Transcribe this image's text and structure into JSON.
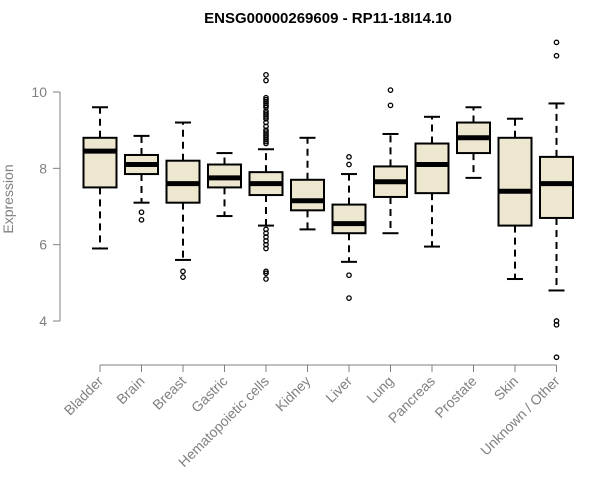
{
  "chart_data": {
    "type": "boxplot",
    "title": "ENSG00000269609 - RP11-18I14.10",
    "ylabel": "Expression",
    "ylim": [
      3.0,
      11.5
    ],
    "yticks": [
      4,
      6,
      8,
      10
    ],
    "colors": {
      "box_fill": "#ede7cf",
      "box_stroke": "#000000",
      "axis": "#808080"
    },
    "categories": [
      "Bladder",
      "Brain",
      "Breast",
      "Gastric",
      "Hematopoietic cells",
      "Kidney",
      "Liver",
      "Lung",
      "Pancreas",
      "Prostate",
      "Skin",
      "Unknown / Other"
    ],
    "boxes": [
      {
        "min": 5.9,
        "q1": 7.5,
        "median": 8.45,
        "q3": 8.8,
        "max": 9.6,
        "outliers": []
      },
      {
        "min": 7.1,
        "q1": 7.85,
        "median": 8.1,
        "q3": 8.35,
        "max": 8.85,
        "outliers": [
          6.85,
          6.65
        ]
      },
      {
        "min": 5.6,
        "q1": 7.1,
        "median": 7.6,
        "q3": 8.2,
        "max": 9.2,
        "outliers": [
          5.3,
          5.15
        ]
      },
      {
        "min": 6.75,
        "q1": 7.5,
        "median": 7.75,
        "q3": 8.1,
        "max": 8.4,
        "outliers": []
      },
      {
        "min": 6.5,
        "q1": 7.3,
        "median": 7.6,
        "q3": 7.9,
        "max": 8.5,
        "outliers": [
          10.45,
          10.3,
          9.85,
          9.8,
          9.75,
          9.7,
          9.65,
          9.6,
          9.5,
          9.45,
          9.4,
          9.35,
          9.3,
          9.2,
          9.1,
          9.0,
          8.95,
          8.9,
          8.85,
          8.8,
          8.75,
          8.7,
          8.65,
          6.4,
          6.3,
          6.2,
          6.1,
          6.0,
          5.9,
          5.3,
          5.25,
          5.1
        ]
      },
      {
        "min": 6.4,
        "q1": 6.9,
        "median": 7.15,
        "q3": 7.7,
        "max": 8.8,
        "outliers": []
      },
      {
        "min": 5.55,
        "q1": 6.3,
        "median": 6.55,
        "q3": 7.05,
        "max": 7.85,
        "outliers": [
          8.3,
          8.1,
          5.2,
          4.6
        ]
      },
      {
        "min": 6.3,
        "q1": 7.25,
        "median": 7.65,
        "q3": 8.05,
        "max": 8.9,
        "outliers": [
          10.05,
          9.65
        ]
      },
      {
        "min": 5.95,
        "q1": 7.35,
        "median": 8.1,
        "q3": 8.65,
        "max": 9.35,
        "outliers": []
      },
      {
        "min": 7.75,
        "q1": 8.4,
        "median": 8.8,
        "q3": 9.2,
        "max": 9.6,
        "outliers": []
      },
      {
        "min": 5.1,
        "q1": 6.5,
        "median": 7.4,
        "q3": 8.8,
        "max": 9.3,
        "outliers": []
      },
      {
        "min": 4.8,
        "q1": 6.7,
        "median": 7.6,
        "q3": 8.3,
        "max": 9.7,
        "outliers": [
          11.3,
          10.95,
          4.0,
          3.9,
          3.05
        ]
      }
    ]
  }
}
